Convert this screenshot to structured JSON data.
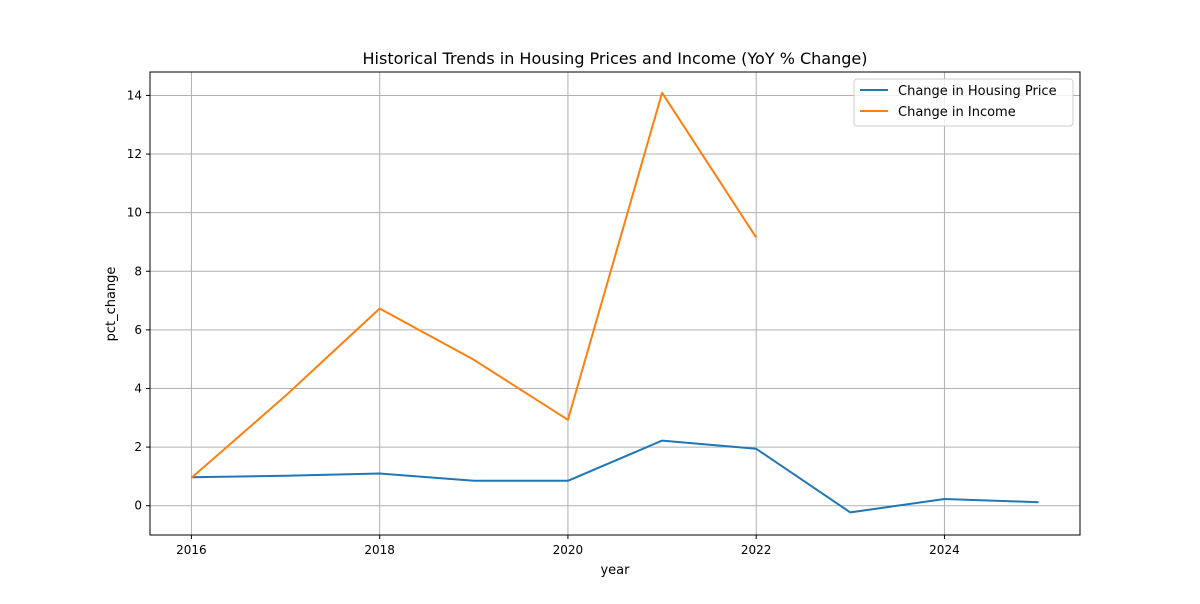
{
  "chart_data": {
    "type": "line",
    "title": "Historical Trends in Housing Prices and Income (YoY % Change)",
    "xlabel": "year",
    "ylabel": "pct_change",
    "xlim": [
      2015.56,
      2025.44
    ],
    "ylim": [
      -1.0,
      14.8
    ],
    "x_ticks": [
      2016,
      2018,
      2020,
      2022,
      2024
    ],
    "y_ticks": [
      0,
      2,
      4,
      6,
      8,
      10,
      12,
      14
    ],
    "grid": true,
    "legend_position": "top-right",
    "series": [
      {
        "name": "Change in Housing Price",
        "color": "#1f77b4",
        "x": [
          2016,
          2017,
          2018,
          2019,
          2020,
          2021,
          2022,
          2023,
          2024,
          2025
        ],
        "y": [
          0.97,
          1.02,
          1.1,
          0.85,
          0.85,
          2.22,
          1.94,
          -0.23,
          0.23,
          0.12
        ]
      },
      {
        "name": "Change in Income",
        "color": "#ff7f0e",
        "x": [
          2016,
          2017,
          2018,
          2019,
          2020,
          2021,
          2022
        ],
        "y": [
          0.95,
          3.75,
          6.73,
          4.98,
          2.93,
          14.09,
          9.15
        ]
      }
    ]
  }
}
